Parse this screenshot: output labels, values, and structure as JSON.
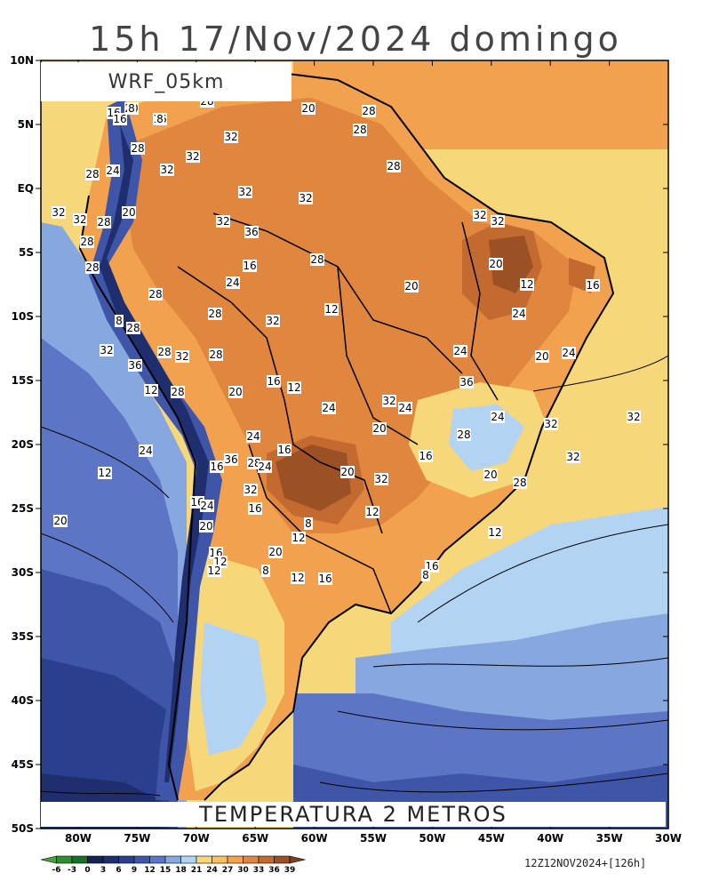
{
  "title": "15h 17/Nov/2024 domingo",
  "model": "WRF_05km",
  "field": "TEMPERATURA 2 METROS",
  "run_info": "12Z12NOV2024+[126h]",
  "lat_labels": [
    "10N",
    "5N",
    "EQ",
    "5S",
    "10S",
    "15S",
    "20S",
    "25S",
    "30S",
    "35S",
    "40S",
    "45S",
    "50S"
  ],
  "lon_labels": [
    "80W",
    "75W",
    "70W",
    "65W",
    "60W",
    "55W",
    "50W",
    "45W",
    "40W",
    "35W",
    "30W"
  ],
  "colorbar": {
    "levels": [
      "-6",
      "-3",
      "0",
      "3",
      "6",
      "9",
      "12",
      "15",
      "18",
      "21",
      "24",
      "27",
      "30",
      "33",
      "36",
      "39"
    ],
    "colors": [
      "#4aa33a",
      "#2f8f2f",
      "#17702a",
      "#14234f",
      "#1f2e6e",
      "#2a3f8e",
      "#3e55a8",
      "#5c75c4",
      "#86a7df",
      "#b3d3f2",
      "#f6d87a",
      "#f7c062",
      "#f2a24e",
      "#e0863f",
      "#c26a2f",
      "#9c5125",
      "#7a3f1d"
    ]
  },
  "contour_labels": [
    "20",
    "28",
    "16",
    "28",
    "20",
    "28",
    "28",
    "32",
    "28",
    "32",
    "28",
    "24",
    "32",
    "28",
    "32",
    "32",
    "32",
    "32",
    "36",
    "32",
    "32",
    "32",
    "28",
    "20",
    "28",
    "20",
    "28",
    "16",
    "28",
    "12",
    "24",
    "20",
    "16",
    "28",
    "12",
    "24",
    "28",
    "32",
    "16",
    "8",
    "28",
    "32",
    "28",
    "32",
    "28",
    "24",
    "20",
    "24",
    "36",
    "16",
    "12",
    "36",
    "20",
    "32",
    "24",
    "12",
    "28",
    "24",
    "24",
    "32",
    "20",
    "28",
    "32",
    "24",
    "16",
    "24",
    "16",
    "32",
    "36",
    "16",
    "28",
    "24",
    "12",
    "20",
    "20",
    "32",
    "28",
    "32",
    "16",
    "24",
    "16",
    "12",
    "20",
    "8",
    "20",
    "12",
    "12",
    "20",
    "16",
    "12",
    "16",
    "12",
    "8",
    "12",
    "16",
    "8",
    "8",
    "16",
    "8"
  ],
  "colors": {
    "background": "#ffffff",
    "ocean_warm": "#f6d87a",
    "land_warm": "#e0863f",
    "land_hot": "#9c5125",
    "ocean_cool": "#b3d3f2",
    "ocean_cold": "#3e55a8"
  }
}
